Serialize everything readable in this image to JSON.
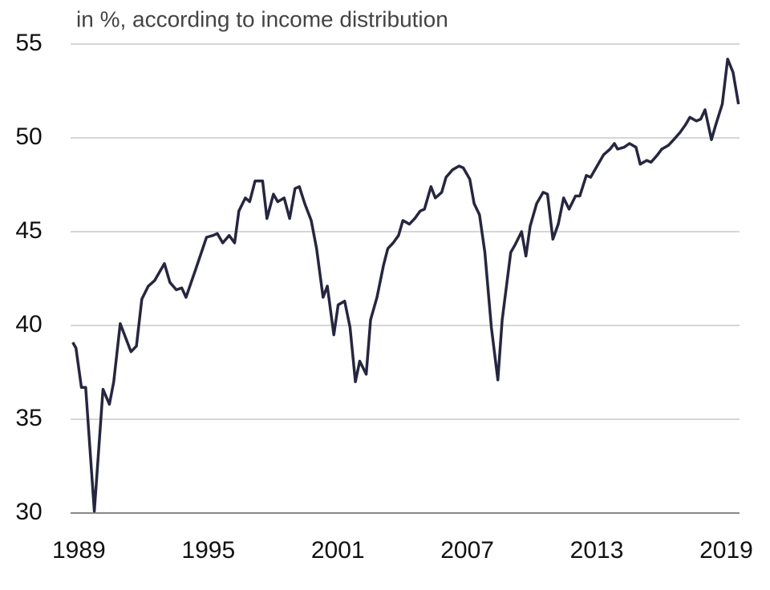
{
  "chart_data": {
    "type": "line",
    "subtitle": "in %, according to income distribution",
    "x": [
      1988.9,
      1989.05,
      1989.3,
      1989.5,
      1989.9,
      1990.3,
      1990.6,
      1990.8,
      1991.1,
      1991.6,
      1991.85,
      1992.1,
      1992.4,
      1992.7,
      1993.15,
      1993.4,
      1993.7,
      1993.95,
      1994.15,
      1994.6,
      1995.1,
      1995.4,
      1995.6,
      1995.85,
      1996.15,
      1996.4,
      1996.6,
      1996.9,
      1997.1,
      1997.35,
      1997.7,
      1997.9,
      1998.2,
      1998.4,
      1998.7,
      1998.95,
      1999.2,
      1999.4,
      1999.65,
      1999.95,
      2000.2,
      2000.5,
      2000.7,
      2001.0,
      2001.2,
      2001.5,
      2001.75,
      2002.0,
      2002.2,
      2002.5,
      2002.7,
      2003.0,
      2003.3,
      2003.5,
      2003.75,
      2004.0,
      2004.2,
      2004.5,
      2004.75,
      2005.0,
      2005.2,
      2005.5,
      2005.7,
      2006.0,
      2006.2,
      2006.5,
      2006.8,
      2007.0,
      2007.3,
      2007.5,
      2007.75,
      2008.0,
      2008.3,
      2008.6,
      2008.8,
      2009.2,
      2009.4,
      2009.7,
      2009.9,
      2010.1,
      2010.4,
      2010.7,
      2010.9,
      2011.15,
      2011.4,
      2011.65,
      2011.9,
      2012.2,
      2012.4,
      2012.7,
      2012.9,
      2013.2,
      2013.5,
      2013.8,
      2014.0,
      2014.15,
      2014.45,
      2014.7,
      2015.0,
      2015.2,
      2015.5,
      2015.7,
      2016.0,
      2016.2,
      2016.5,
      2016.75,
      2017.05,
      2017.3,
      2017.5,
      2017.8,
      2018.0,
      2018.2,
      2018.5,
      2018.7,
      2019.0,
      2019.25,
      2019.5,
      2019.75
    ],
    "values": [
      39.1,
      38.8,
      36.7,
      36.7,
      30.1,
      36.6,
      35.8,
      37.0,
      40.1,
      38.6,
      38.9,
      41.4,
      42.1,
      42.4,
      43.3,
      42.3,
      41.9,
      42.0,
      41.5,
      43.0,
      44.7,
      44.8,
      44.9,
      44.4,
      44.8,
      44.4,
      46.1,
      46.8,
      46.6,
      47.7,
      47.7,
      45.7,
      47.0,
      46.6,
      46.8,
      45.7,
      47.3,
      47.4,
      46.5,
      45.6,
      44.1,
      41.5,
      42.1,
      39.5,
      41.1,
      41.3,
      39.9,
      37.0,
      38.1,
      37.4,
      40.3,
      41.5,
      43.2,
      44.1,
      44.4,
      44.8,
      45.6,
      45.4,
      45.7,
      46.1,
      46.2,
      47.4,
      46.8,
      47.1,
      47.9,
      48.3,
      48.5,
      48.4,
      47.8,
      46.5,
      45.9,
      43.9,
      39.9,
      37.1,
      40.3,
      43.9,
      44.3,
      45.0,
      43.7,
      45.3,
      46.5,
      47.1,
      47.0,
      44.6,
      45.4,
      46.8,
      46.2,
      46.9,
      46.9,
      48.0,
      47.9,
      48.5,
      49.1,
      49.4,
      49.7,
      49.4,
      49.5,
      49.7,
      49.5,
      48.6,
      48.8,
      48.7,
      49.1,
      49.4,
      49.6,
      49.9,
      50.3,
      50.7,
      51.1,
      50.9,
      51.0,
      51.5,
      49.9,
      50.7,
      51.8,
      54.2,
      53.5,
      51.8
    ],
    "color": "#262640",
    "xlim": [
      1988.8,
      2019.8
    ],
    "xticks": [
      1989,
      1995,
      2001,
      2007,
      2013,
      2019
    ],
    "ylim": [
      30,
      55
    ],
    "yticks": [
      30,
      35,
      40,
      45,
      50,
      55
    ],
    "grid": true
  }
}
